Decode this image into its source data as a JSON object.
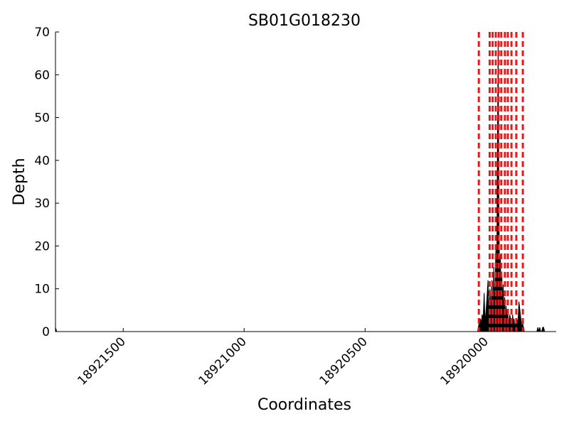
{
  "chart_data": {
    "type": "area",
    "title": "SB01G018230",
    "xlabel": "Coordinates",
    "ylabel": "Depth",
    "x_inverted": true,
    "xlim": [
      18921780,
      18919710
    ],
    "ylim": [
      0,
      70
    ],
    "xticks": [
      18921500,
      18921000,
      18920500,
      18920000
    ],
    "xtick_labels": [
      "18921500",
      "18921000",
      "18920500",
      "18920000"
    ],
    "yticks": [
      0,
      10,
      20,
      30,
      40,
      50,
      60,
      70
    ],
    "ytick_labels": [
      "0",
      "10",
      "20",
      "30",
      "40",
      "50",
      "60",
      "70"
    ],
    "exon_boundaries": [
      18920030,
      18919985,
      18919973,
      18919960,
      18919948,
      18919937,
      18919922,
      18919910,
      18919895,
      18919875,
      18919848
    ],
    "exon_line_color": "#e41a1c",
    "depth_color": "#000000",
    "depth": {
      "x": [
        18921780,
        18921775,
        18920035,
        18920032,
        18920028,
        18920024,
        18920020,
        18920016,
        18920012,
        18920008,
        18920004,
        18920000,
        18919996,
        18919992,
        18919988,
        18919984,
        18919980,
        18919976,
        18919972,
        18919968,
        18919965,
        18919962,
        18919959,
        18919956,
        18919953,
        18919950,
        18919947,
        18919944,
        18919941,
        18919938,
        18919935,
        18919932,
        18919929,
        18919926,
        18919923,
        18919920,
        18919917,
        18919914,
        18919911,
        18919908,
        18919905,
        18919902,
        18919899,
        18919896,
        18919893,
        18919890,
        18919887,
        18919884,
        18919881,
        18919878,
        18919875,
        18919872,
        18919868,
        18919864,
        18919860,
        18919856,
        18919852,
        18919848,
        18919846,
        18919844,
        18919842,
        18919838,
        18919790,
        18919786,
        18919782,
        18919778,
        18919774,
        18919770,
        18919766,
        18919762,
        18919758
      ],
      "y": [
        1,
        0,
        0,
        1,
        2,
        3,
        2,
        4,
        3,
        9,
        2,
        5,
        8,
        12,
        3,
        10,
        4,
        12,
        6,
        15,
        5,
        13,
        20,
        8,
        45,
        68,
        30,
        12,
        18,
        9,
        14,
        7,
        11,
        4,
        8,
        3,
        6,
        2,
        5,
        3,
        2,
        4,
        3,
        2,
        1,
        4,
        2,
        3,
        1,
        2,
        1,
        3,
        2,
        7,
        5,
        3,
        1,
        2,
        1,
        1,
        0,
        0,
        0,
        1,
        0,
        1,
        0,
        0,
        1,
        1,
        0
      ]
    }
  }
}
